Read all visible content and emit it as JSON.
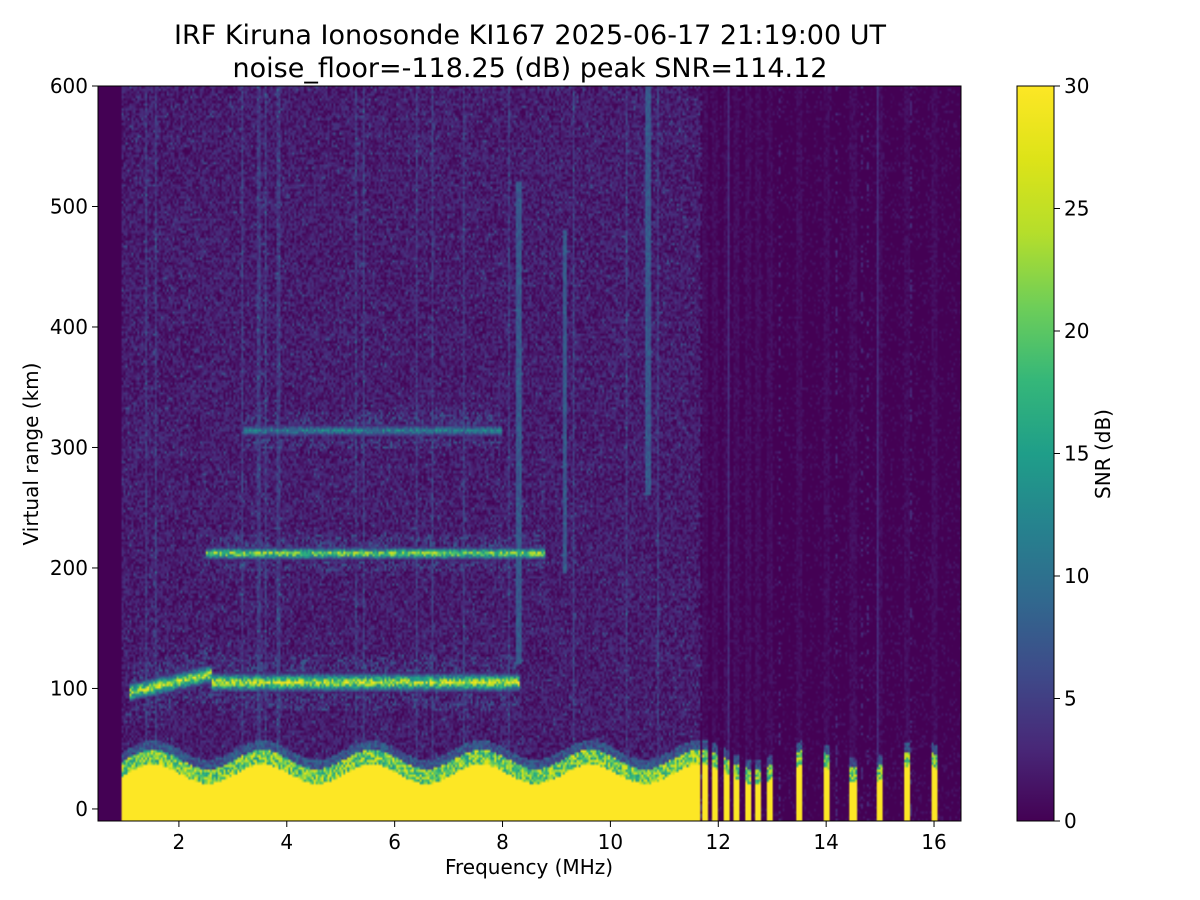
{
  "chart_data": {
    "type": "heatmap",
    "title": "IRF Kiruna Ionosonde KI167 2025-06-17 21:19:00  UT",
    "subtitle": "noise_floor=-118.25 (dB) peak SNR=114.12",
    "xlabel": "Frequency (MHz)",
    "ylabel": "Virtual range (km)",
    "colorbar_label": "SNR (dB)",
    "xlim": [
      0.5,
      16.5
    ],
    "ylim": [
      -10,
      600
    ],
    "clim": [
      0,
      30
    ],
    "colormap": "viridis",
    "x_ticks": [
      2,
      4,
      6,
      8,
      10,
      12,
      14,
      16
    ],
    "y_ticks": [
      0,
      100,
      200,
      300,
      400,
      500,
      600
    ],
    "colorbar_ticks": [
      0,
      5,
      10,
      15,
      20,
      25,
      30
    ],
    "data_fmin_mhz": 0.95,
    "traces": [
      {
        "layer": "E",
        "f_start": 1.1,
        "f_end": 8.3,
        "range_km": 105,
        "peak_snr_db": 30
      },
      {
        "layer": "E-multihop",
        "f_start": 2.5,
        "f_end": 8.8,
        "range_km": 212,
        "peak_snr_db": 27
      },
      {
        "layer": "E-multihop",
        "f_start": 3.2,
        "f_end": 8.0,
        "range_km": 314,
        "peak_snr_db": 14
      }
    ],
    "ground_clutter": {
      "range_km": [
        0,
        45
      ],
      "f_end_continuous": 11.65,
      "snr_db": 30
    },
    "discrete_channels_mhz": [
      11.75,
      11.95,
      12.15,
      12.35,
      12.55,
      12.75,
      12.95,
      13.5,
      14.0,
      14.5,
      15.0,
      15.5,
      16.0
    ],
    "interference_lines": [
      {
        "freq_mhz": 10.7,
        "range_km": [
          260,
          600
        ]
      },
      {
        "freq_mhz": 9.15,
        "range_km": [
          195,
          480
        ]
      },
      {
        "freq_mhz": 8.3,
        "range_km": [
          120,
          520
        ]
      }
    ]
  }
}
